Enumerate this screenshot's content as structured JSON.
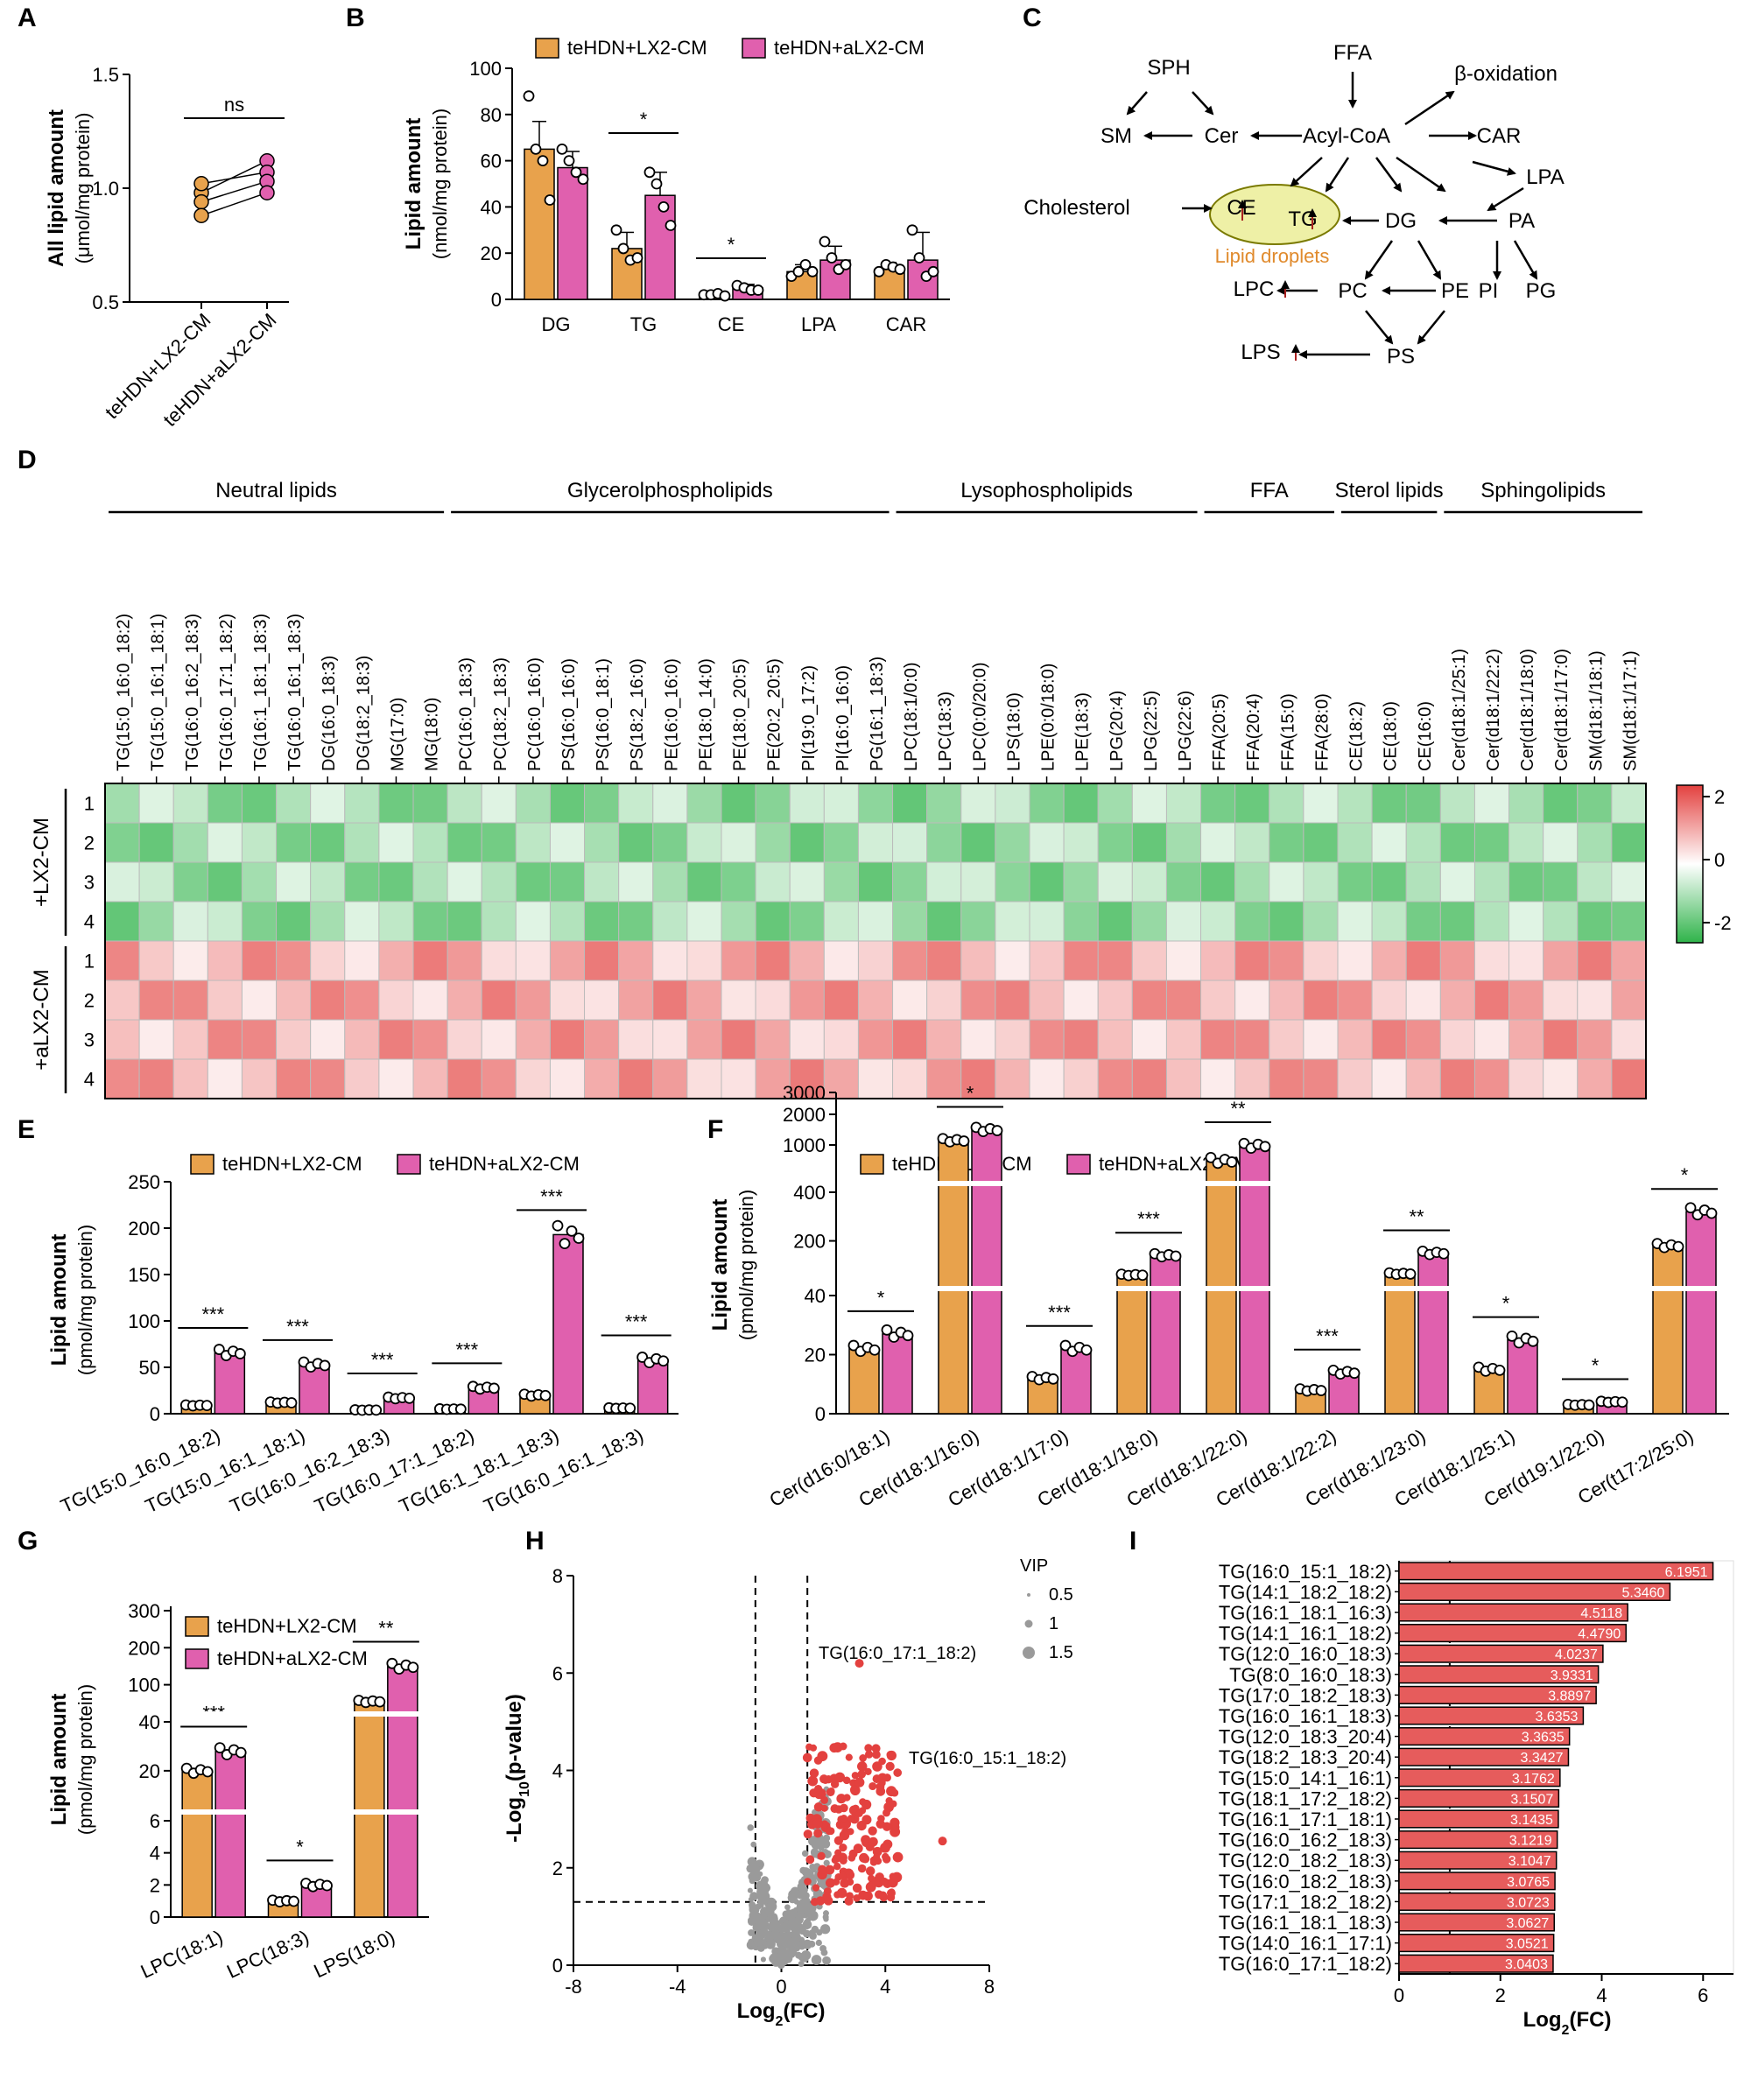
{
  "colors": {
    "orange": "#E8A24C",
    "magenta": "#E060AE",
    "red": "#E3413F",
    "gray": "#9A9A9A"
  },
  "chart_data": [
    {
      "id": "A",
      "type": "scatter",
      "label": "A",
      "ylabel": "All lipid amount",
      "yunit": "(μmol/mg protein)",
      "ylim": [
        0.5,
        1.5
      ],
      "yticks": [
        "0.5",
        "1.0",
        "1.5"
      ],
      "categories": [
        "teHDN+LX2-CM",
        "teHDN+aLX2-CM"
      ],
      "pairs": [
        [
          0.98,
          1.12
        ],
        [
          1.02,
          1.07
        ],
        [
          0.94,
          1.03
        ],
        [
          0.88,
          0.98
        ]
      ],
      "sig": "ns"
    },
    {
      "id": "B",
      "type": "bar",
      "label": "B",
      "ylabel": "Lipid amount",
      "yunit": "(nmol/mg protein)",
      "ylim": [
        0,
        100
      ],
      "yticks": [
        "0",
        "20",
        "40",
        "60",
        "80",
        "100"
      ],
      "categories": [
        "DG",
        "TG",
        "CE",
        "LPA",
        "CAR"
      ],
      "legend": [
        "teHDN+LX2-CM",
        "teHDN+aLX2-CM"
      ],
      "series": [
        {
          "name": "teHDN+LX2-CM",
          "values": [
            65,
            22,
            2,
            12,
            13
          ],
          "err": [
            12,
            7,
            0.5,
            3,
            3
          ],
          "pts": [
            [
              88,
              65,
              60,
              43
            ],
            [
              30,
              22,
              17,
              18
            ],
            [
              2,
              2,
              2.5,
              1.5
            ],
            [
              10,
              12,
              15,
              12
            ],
            [
              12,
              15,
              14,
              13
            ]
          ]
        },
        {
          "name": "teHDN+aLX2-CM",
          "values": [
            57,
            45,
            5,
            17,
            17
          ],
          "err": [
            7,
            10,
            1.5,
            6,
            12
          ],
          "pts": [
            [
              65,
              60,
              55,
              52
            ],
            [
              55,
              50,
              40,
              32
            ],
            [
              6,
              5,
              4,
              4
            ],
            [
              25,
              18,
              13,
              15
            ],
            [
              30,
              18,
              10,
              12
            ]
          ]
        }
      ],
      "sig": [
        "",
        "*",
        "*",
        "",
        ""
      ]
    },
    {
      "id": "C",
      "type": "diagram",
      "label": "C",
      "nodes": [
        "SPH",
        "FFA",
        "β-oxidation",
        "SM",
        "Cer",
        "Acyl-CoA",
        "CAR",
        "LPA",
        "Cholesterol",
        "CE",
        "TG",
        "DG",
        "PA",
        "Lipid droplets",
        "LPC",
        "PC",
        "PE",
        "PI",
        "PG",
        "LPS",
        "PS"
      ]
    },
    {
      "id": "D",
      "type": "heatmap",
      "label": "D",
      "groups": [
        "Neutral lipids",
        "Glycerolphospholipids",
        "Lysophospholipids",
        "FFA",
        "Sterol lipids",
        "Sphingolipids"
      ],
      "columns": [
        "TG(15:0_16:0_18:2)",
        "TG(15:0_16:1_18:1)",
        "TG(16:0_16:2_18:3)",
        "TG(16:0_17:1_18:2)",
        "TG(16:1_18:1_18:3)",
        "TG(16:0_16:1_18:3)",
        "DG(16:0_18:3)",
        "DG(18:2_18:3)",
        "MG(17:0)",
        "MG(18:0)",
        "PC(16:0_18:3)",
        "PC(18:2_18:3)",
        "PC(16:0_16:0)",
        "PS(16:0_16:0)",
        "PS(16:0_18:1)",
        "PS(18:2_16:0)",
        "PE(16:0_16:0)",
        "PE(18:0_14:0)",
        "PE(18:0_20:5)",
        "PE(20:2_20:5)",
        "PI(19:0_17:2)",
        "PI(16:0_16:0)",
        "PG(16:1_18:3)",
        "LPC(18:1/0:0)",
        "LPC(18:3)",
        "LPC(0:0/20:0)",
        "LPS(18:0)",
        "LPE(0:0/18:0)",
        "LPE(18:3)",
        "LPG(20:4)",
        "LPG(22:5)",
        "LPG(22:6)",
        "FFA(20:5)",
        "FFA(20:4)",
        "FFA(15:0)",
        "FFA(28:0)",
        "CE(18:2)",
        "CE(18:0)",
        "CE(16:0)",
        "Cer(d18:1/25:1)",
        "Cer(d18:1/22:2)",
        "Cer(d18:1/18:0)",
        "Cer(d18:1/17:0)",
        "SM(d18:1/18:1)",
        "SM(d18:1/17:1)"
      ],
      "rowGroups": [
        "+LX2-CM",
        "+aLX2-CM"
      ],
      "rows": [
        "1",
        "2",
        "3",
        "4",
        "1",
        "2",
        "3",
        "4"
      ],
      "scale": [
        "2",
        "0",
        "-2"
      ],
      "cellsNote": "colors approximated"
    },
    {
      "id": "E",
      "type": "bar",
      "label": "E",
      "ylabel": "Lipid amount",
      "yunit": "(pmol/mg protein)",
      "ylim": [
        0,
        250
      ],
      "yticks": [
        "0",
        "50",
        "100",
        "150",
        "200",
        "250"
      ],
      "categories": [
        "TG(15:0_16:0_18:2)",
        "TG(15:0_16:1_18:1)",
        "TG(16:0_16:2_18:3)",
        "TG(16:0_17:1_18:2)",
        "TG(16:1_18:1_18:3)",
        "TG(16:0_16:1_18:3)"
      ],
      "legend": [
        "teHDN+LX2-CM",
        "teHDN+aLX2-CM"
      ],
      "series": [
        {
          "name": "teHDN+LX2-CM",
          "values": [
            9,
            12,
            4,
            5,
            20,
            6
          ]
        },
        {
          "name": "teHDN+aLX2-CM",
          "values": [
            66,
            53,
            17,
            28,
            193,
            58
          ]
        }
      ],
      "sig": [
        "***",
        "***",
        "***",
        "***",
        "***",
        "***"
      ]
    },
    {
      "id": "F",
      "type": "bar",
      "label": "F",
      "ylabel": "Lipid amount",
      "yunit": "(pmol/mg protein)",
      "yticks": [
        "0",
        "20",
        "40",
        "200",
        "400",
        "1000",
        "2000",
        "3000"
      ],
      "categories": [
        "Cer(d16:0/18:1)",
        "Cer(d18:1/16:0)",
        "Cer(d18:1/17:0)",
        "Cer(d18:1/18:0)",
        "Cer(d18:1/22:0)",
        "Cer(d18:1/22:2)",
        "Cer(d18:1/23:0)",
        "Cer(d18:1/25:1)",
        "Cer(d19:1/22:0)",
        "Cer(t17:2/25:0)"
      ],
      "legend": [
        "teHDN+LX2-CM",
        "teHDN+aLX2-CM"
      ],
      "series": [
        {
          "name": "teHDN+LX2-CM",
          "values": [
            22,
            1150,
            12,
            60,
            800,
            8,
            65,
            15,
            3,
            180
          ]
        },
        {
          "name": "teHDN+aLX2-CM",
          "values": [
            27,
            1500,
            22,
            140,
            1000,
            14,
            150,
            25,
            4,
            320
          ]
        }
      ],
      "sig": [
        "*",
        "*",
        "***",
        "***",
        "**",
        "***",
        "**",
        "*",
        "*",
        "*"
      ]
    },
    {
      "id": "G",
      "type": "bar",
      "label": "G",
      "ylabel": "Lipid amount",
      "yunit": "(pmol/mg protein)",
      "yticks": [
        "0",
        "2",
        "4",
        "6",
        "20",
        "40",
        "100",
        "200",
        "300"
      ],
      "categories": [
        "LPC(18:1)",
        "LPC(18:3)",
        "LPS(18:0)"
      ],
      "legend": [
        "teHDN+LX2-CM",
        "teHDN+aLX2-CM"
      ],
      "series": [
        {
          "name": "teHDN+LX2-CM",
          "values": [
            20,
            1,
            55
          ]
        },
        {
          "name": "teHDN+aLX2-CM",
          "values": [
            28,
            2,
            150
          ]
        }
      ],
      "sig": [
        "***",
        "*",
        "**"
      ]
    },
    {
      "id": "H",
      "type": "scatter",
      "label": "H",
      "xlabel": "Log",
      "xlabelSub": "2",
      "xlabelTail": "(FC)",
      "ylabel": "-Log",
      "ylabelSub": "10",
      "ylabelTail": "(p-value)",
      "xlim": [
        -8,
        8
      ],
      "ylim": [
        0,
        8
      ],
      "xticks": [
        "-8",
        "-4",
        "0",
        "4",
        "8"
      ],
      "yticks": [
        "0",
        "2",
        "4",
        "6",
        "8"
      ],
      "legendTitle": "VIP",
      "legendItems": [
        "0.5",
        "1",
        "1.5"
      ],
      "annotations": [
        "TG(16:0_17:1_18:2)",
        "TG(16:0_15:1_18:2)"
      ]
    },
    {
      "id": "I",
      "type": "bar",
      "label": "I",
      "orientation": "horizontal",
      "xlabel": "Log",
      "xlabelSub": "2",
      "xlabelTail": "(FC)",
      "xticks": [
        "0",
        "2",
        "4",
        "6"
      ],
      "categories": [
        "TG(16:0_15:1_18:2)",
        "TG(14:1_18:2_18:2)",
        "TG(16:1_18:1_16:3)",
        "TG(14:1_16:1_18:2)",
        "TG(12:0_16:0_18:3)",
        "TG(8:0_16:0_18:3)",
        "TG(17:0_18:2_18:3)",
        "TG(16:0_16:1_18:3)",
        "TG(12:0_18:3_20:4)",
        "TG(18:2_18:3_20:4)",
        "TG(15:0_14:1_16:1)",
        "TG(18:1_17:2_18:2)",
        "TG(16:1_17:1_18:1)",
        "TG(16:0_16:2_18:3)",
        "TG(12:0_18:2_18:3)",
        "TG(16:0_18:2_18:3)",
        "TG(17:1_18:2_18:2)",
        "TG(16:1_18:1_18:3)",
        "TG(14:0_16:1_17:1)",
        "TG(16:0_17:1_18:2)"
      ],
      "values": [
        "6.1951",
        "5.3460",
        "4.5118",
        "4.4790",
        "4.0237",
        "3.9331",
        "3.8897",
        "3.6353",
        "3.3635",
        "3.3427",
        "3.1762",
        "3.1507",
        "3.1435",
        "3.1219",
        "3.1047",
        "3.0765",
        "3.0723",
        "3.0627",
        "3.0521",
        "3.0403"
      ]
    }
  ]
}
